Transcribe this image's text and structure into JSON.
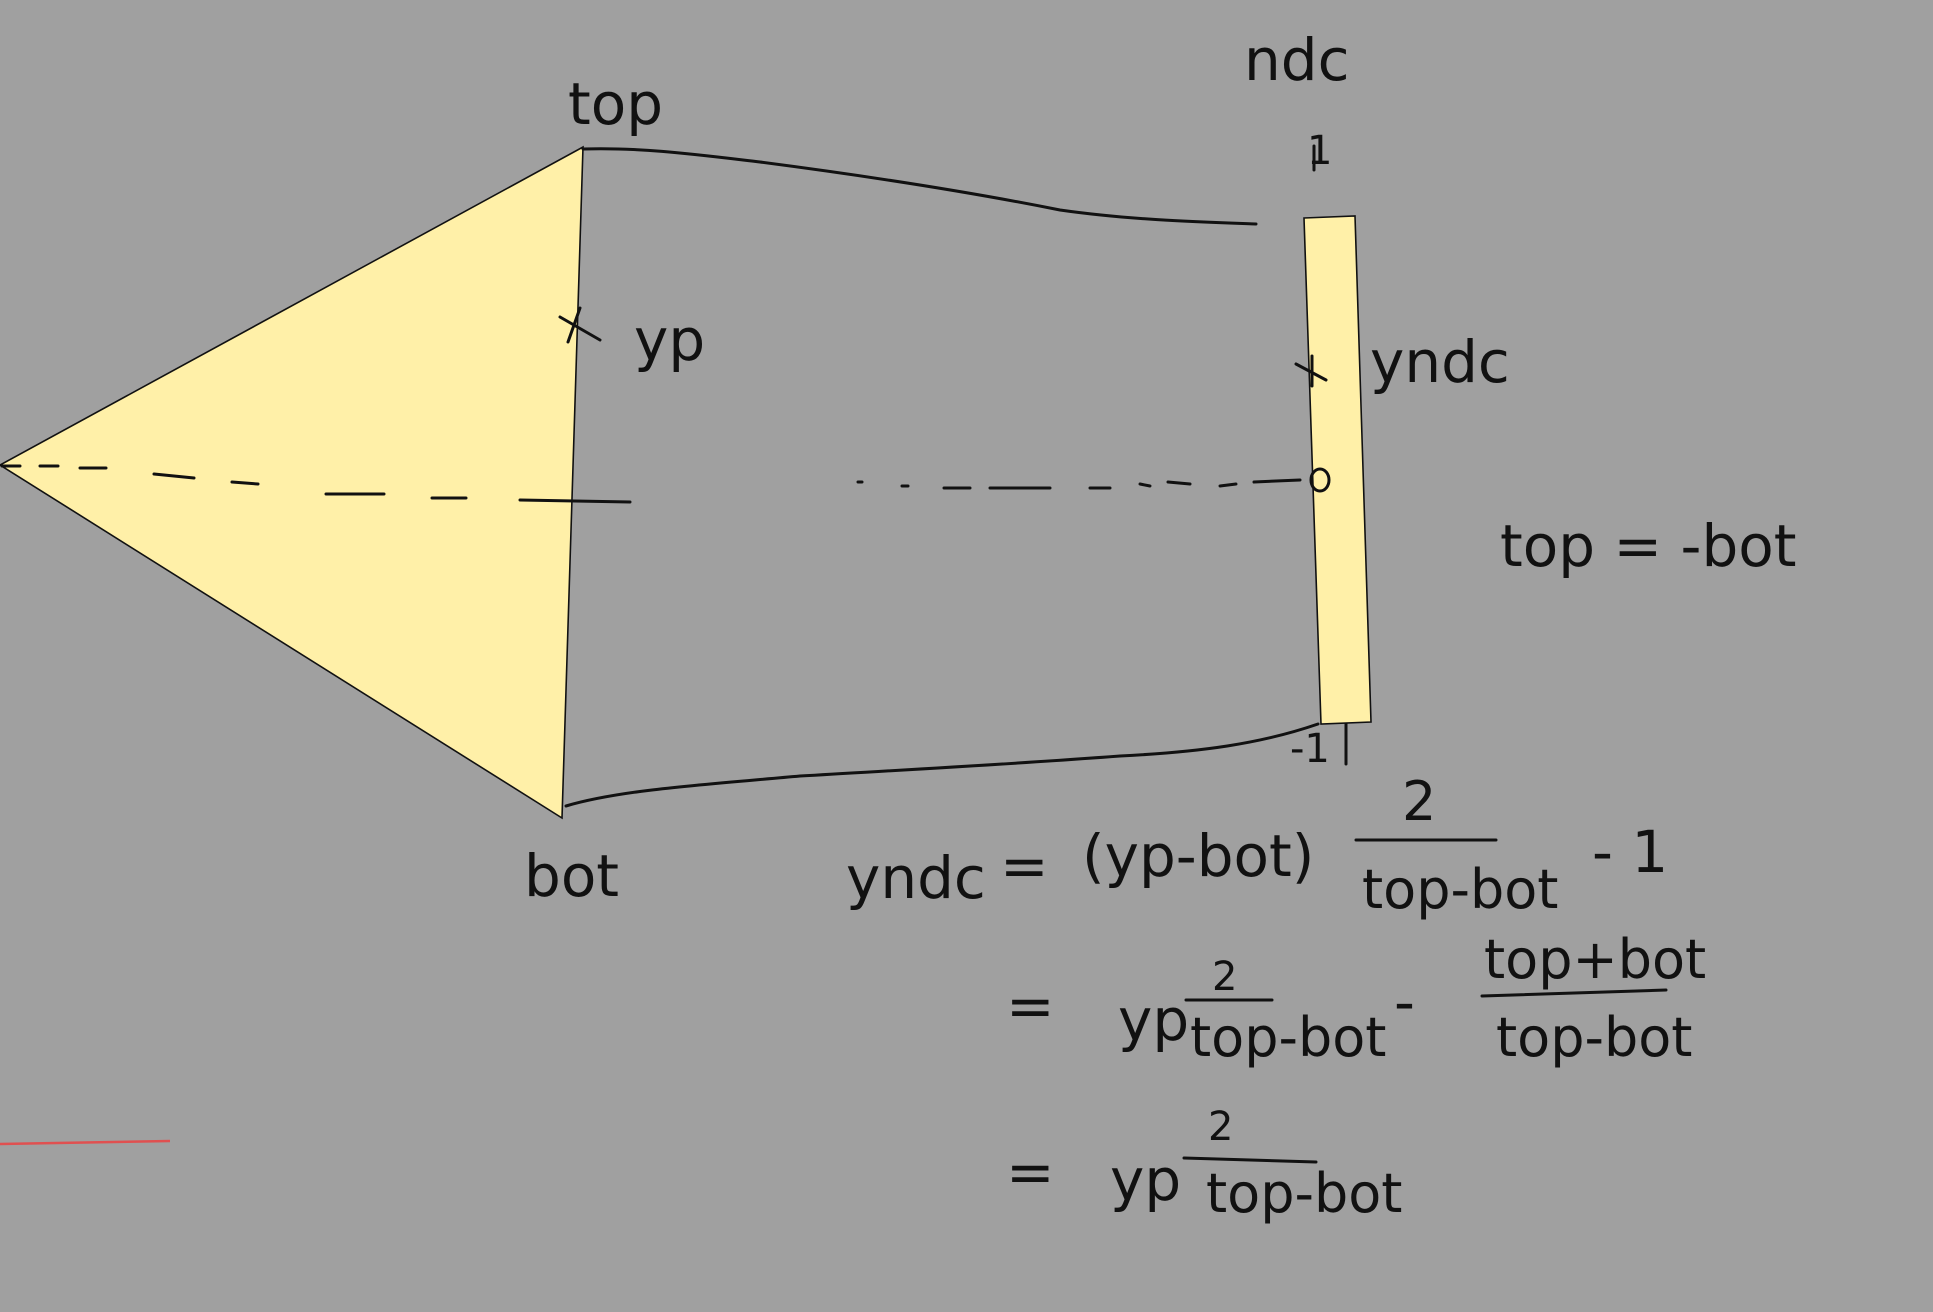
{
  "colors": {
    "background": "#a0a0a0",
    "fill": "#fff0a8",
    "ink": "#111111",
    "red_mark": "#e05050"
  },
  "labels": {
    "top": "top",
    "bot": "bot",
    "yp": "yp",
    "ndc": "ndc",
    "one": "1",
    "minus_one": "-1",
    "yndc": "yndc",
    "top_eq_bot": "top = -bot"
  },
  "equation": {
    "line1": {
      "lhs": "yndc",
      "eq": "=",
      "paren": "(yp-bot)",
      "frac_num": "2",
      "frac_den": "top-bot",
      "tail": "- 1"
    },
    "line2": {
      "eq": "=",
      "yp": "yp",
      "frac_num": "2",
      "frac_den": "top-bot",
      "minus": "-",
      "frac2_num": "top+bot",
      "frac2_den": "top-bot"
    },
    "line3": {
      "eq": "=",
      "yp": "yp",
      "frac_num": "2",
      "frac_den": "top-bot"
    }
  }
}
